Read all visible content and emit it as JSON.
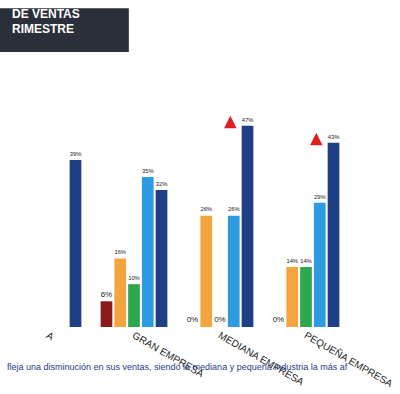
{
  "chart_data": {
    "type": "bar",
    "title": [
      "DE VENTAS",
      "RIMESTRE"
    ],
    "categories": [
      "A",
      "GRAN EMPRESA",
      "MEDIANA EMPRESA",
      "PEQUEÑA EMPRESA"
    ],
    "series": [
      {
        "color": "#8b1a1a",
        "values": [
          null,
          6,
          0,
          0
        ],
        "value_labels": [
          null,
          "6%",
          "0%",
          "0%"
        ]
      },
      {
        "color": "#f4a43c",
        "values": [
          null,
          16,
          26,
          14
        ],
        "value_labels": [
          null,
          "16%",
          "26%",
          "14%"
        ]
      },
      {
        "color": "#2ea84f",
        "values": [
          null,
          10,
          0,
          14
        ],
        "value_labels": [
          null,
          "10%",
          "0%",
          "14%"
        ]
      },
      {
        "color": "#2e9be0",
        "values": [
          null,
          35,
          26,
          29
        ],
        "value_labels": [
          null,
          "35%",
          "26%",
          "29%"
        ]
      },
      {
        "color": "#1f3f86",
        "values": [
          39,
          32,
          47,
          43
        ],
        "value_labels": [
          "39%",
          "32%",
          "47%",
          "43%"
        ]
      }
    ],
    "ylim": [
      0,
      60
    ],
    "yticks": [],
    "tick_labels": "x",
    "grid": false,
    "data_labels": true,
    "annotations": [
      "fleja una disminución en sus ventas, siendo la mediana y pequeña industria la más af"
    ]
  }
}
